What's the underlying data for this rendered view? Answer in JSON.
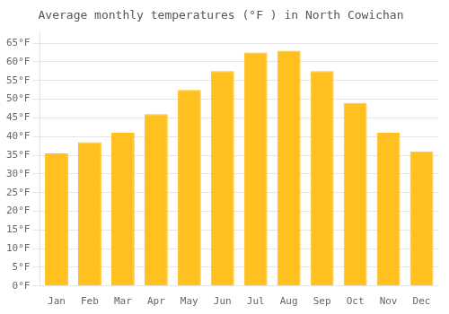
{
  "chart_data": {
    "type": "bar",
    "title": "Average monthly temperatures (°F ) in North Cowichan",
    "categories": [
      "Jan",
      "Feb",
      "Mar",
      "Apr",
      "May",
      "Jun",
      "Jul",
      "Aug",
      "Sep",
      "Oct",
      "Nov",
      "Dec"
    ],
    "values": [
      35.5,
      38.5,
      41.0,
      46.0,
      52.5,
      57.5,
      62.5,
      63.0,
      57.5,
      49.0,
      41.0,
      36.0
    ],
    "color": "#FFC020",
    "ylim": [
      0,
      68
    ],
    "yticks": [
      {
        "value": 0,
        "label": "0°F"
      },
      {
        "value": 5,
        "label": "5°F"
      },
      {
        "value": 10,
        "label": "10°F"
      },
      {
        "value": 15,
        "label": "15°F"
      },
      {
        "value": 20,
        "label": "20°F"
      },
      {
        "value": 25,
        "label": "25°F"
      },
      {
        "value": 30,
        "label": "30°F"
      },
      {
        "value": 35,
        "label": "35°F"
      },
      {
        "value": 40,
        "label": "40°F"
      },
      {
        "value": 45,
        "label": "45°F"
      },
      {
        "value": 50,
        "label": "50°F"
      },
      {
        "value": 55,
        "label": "55°F"
      },
      {
        "value": 60,
        "label": "60°F"
      },
      {
        "value": 65,
        "label": "65°F"
      }
    ],
    "grid": true
  }
}
